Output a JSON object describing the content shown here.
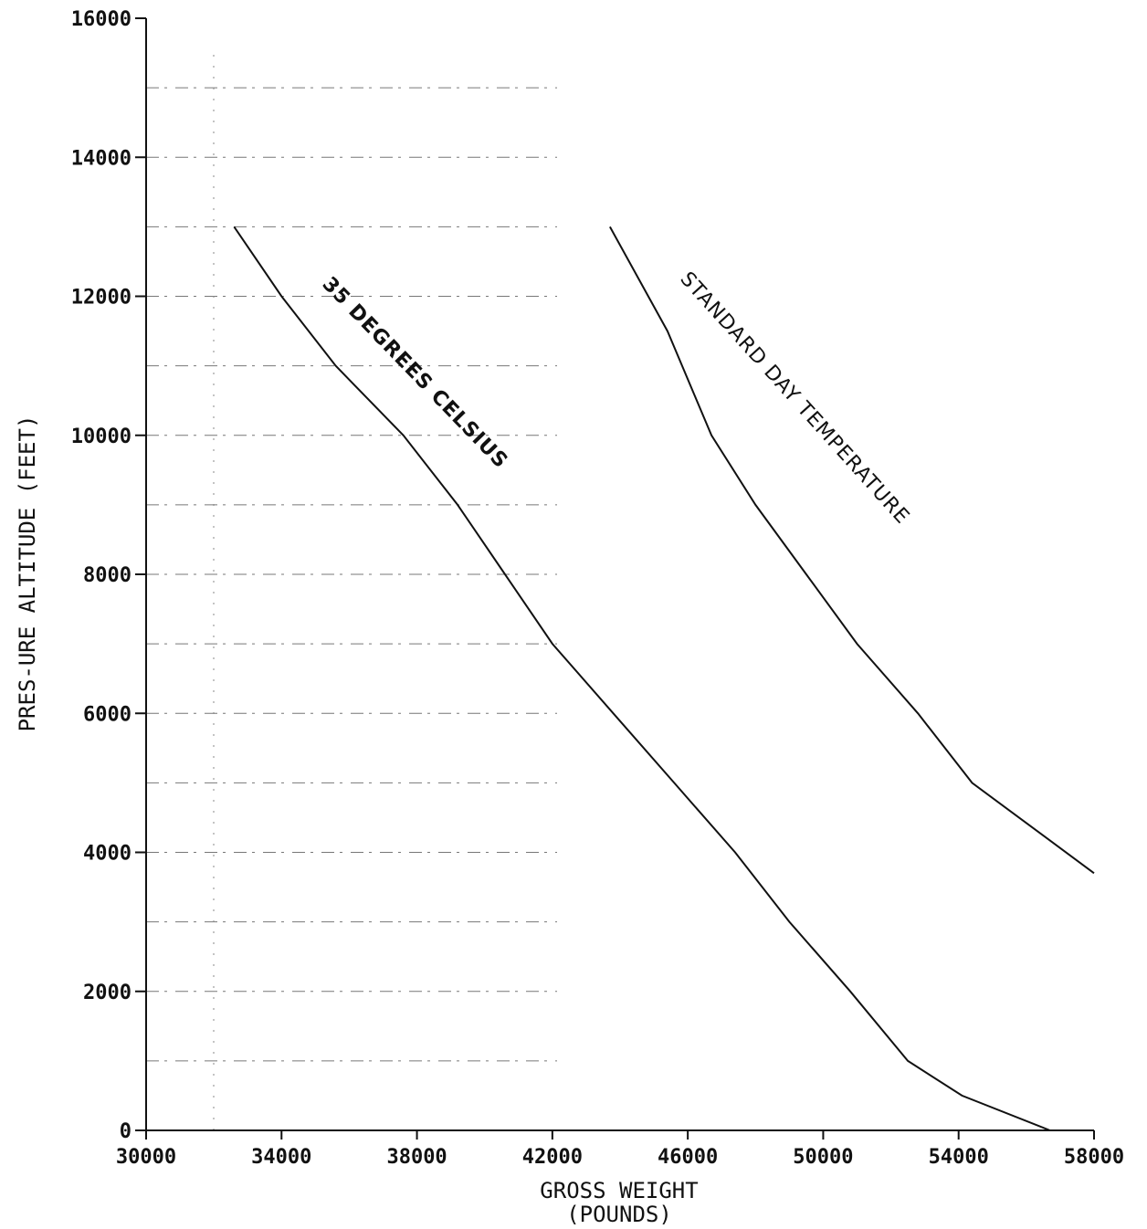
{
  "chart_data": {
    "type": "line",
    "xlabel_line1": "GROSS WEIGHT",
    "xlabel_line2": "(POUNDS)",
    "ylabel": "PRES-URE ALTITUDE (FEET)",
    "xlim": [
      30000,
      58000
    ],
    "ylim": [
      0,
      16000
    ],
    "x_ticks": [
      30000,
      34000,
      38000,
      42000,
      46000,
      50000,
      54000,
      58000
    ],
    "x_tick_labels": [
      "30000",
      "34000",
      "38000",
      "42000",
      "46000",
      "50000",
      "54000",
      "58000"
    ],
    "y_ticks": [
      0,
      2000,
      4000,
      6000,
      8000,
      10000,
      12000,
      14000,
      16000
    ],
    "y_tick_labels": [
      "0",
      "2000",
      "4000",
      "6000",
      "8000",
      "10000",
      "12000",
      "14000",
      "16000"
    ],
    "grid": "faint dashed horizontal lines every 1000 ft on the left side",
    "series": [
      {
        "name": "35 DEGREES CELSIUS",
        "points": [
          {
            "x": 32600,
            "y": 13000
          },
          {
            "x": 34000,
            "y": 12000
          },
          {
            "x": 35600,
            "y": 11000
          },
          {
            "x": 37600,
            "y": 10000
          },
          {
            "x": 39200,
            "y": 9000
          },
          {
            "x": 40600,
            "y": 8000
          },
          {
            "x": 42000,
            "y": 7000
          },
          {
            "x": 43800,
            "y": 6000
          },
          {
            "x": 45600,
            "y": 5000
          },
          {
            "x": 47400,
            "y": 4000
          },
          {
            "x": 49000,
            "y": 3000
          },
          {
            "x": 50800,
            "y": 2000
          },
          {
            "x": 52500,
            "y": 1000
          },
          {
            "x": 54100,
            "y": 500
          },
          {
            "x": 56700,
            "y": 0
          }
        ]
      },
      {
        "name": "STANDARD DAY TEMPERATURE",
        "points": [
          {
            "x": 43700,
            "y": 13000
          },
          {
            "x": 45400,
            "y": 11500
          },
          {
            "x": 46700,
            "y": 10000
          },
          {
            "x": 48000,
            "y": 9000
          },
          {
            "x": 49500,
            "y": 8000
          },
          {
            "x": 51000,
            "y": 7000
          },
          {
            "x": 52800,
            "y": 6000
          },
          {
            "x": 54400,
            "y": 5000
          },
          {
            "x": 58000,
            "y": 3700
          }
        ]
      }
    ]
  }
}
